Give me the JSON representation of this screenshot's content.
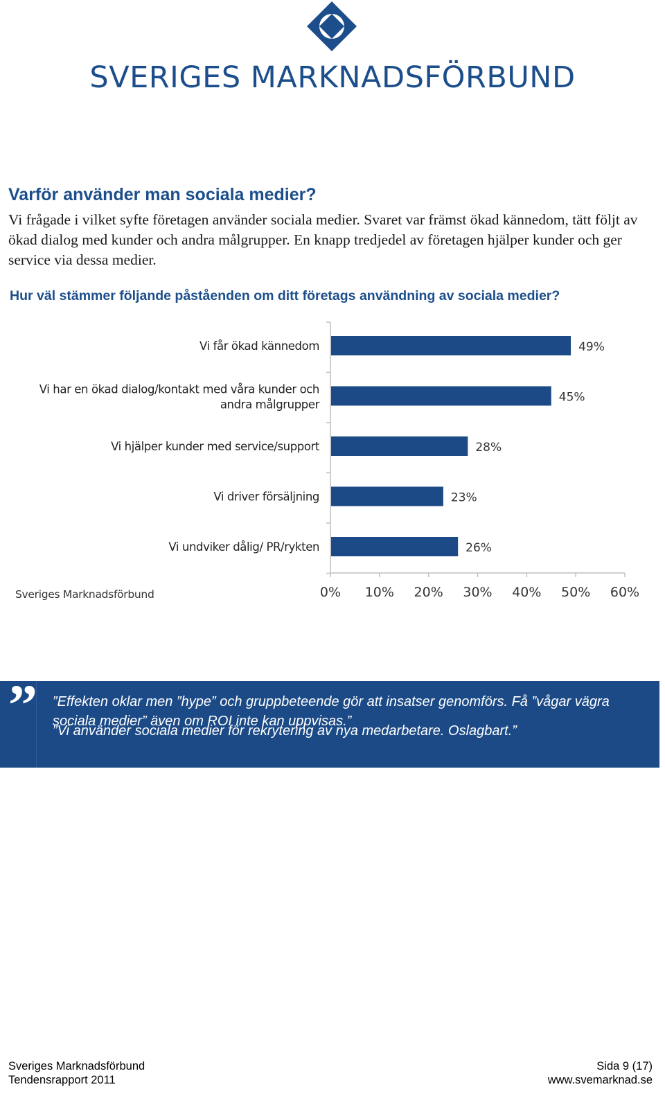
{
  "header": {
    "org_name": "SVERIGES MARKNADSFÖRBUND",
    "logo_icon": "diamond-circle-logo-icon",
    "brand_color": "#1c4e8c"
  },
  "section": {
    "heading": "Varför använder man sociala medier?",
    "intro": "Vi frågade i vilket syfte företagen använder sociala medier. Svaret var främst ökad kännedom, tätt följt av ökad dialog med kunder och andra målgrupper. En knapp tredjedel av företagen hjälper kunder och ger service via dessa medier.",
    "question": "Hur väl stämmer följande påståenden om ditt företags användning av sociala medier?"
  },
  "chart_data": {
    "type": "bar",
    "orientation": "horizontal",
    "categories": [
      "Vi får ökad kännedom",
      "Vi har en ökad dialog/kontakt med våra kunder och andra målgrupper",
      "Vi hjälper kunder med service/support",
      "Vi driver försäljning",
      "Vi undviker dålig/ PR/rykten"
    ],
    "category_lines": [
      [
        "Vi får ökad kännedom"
      ],
      [
        "Vi har en ökad dialog/kontakt med våra kunder och",
        "andra målgrupper"
      ],
      [
        "Vi hjälper kunder med service/support"
      ],
      [
        "Vi driver försäljning"
      ],
      [
        "Vi undviker dålig/ PR/rykten"
      ]
    ],
    "values": [
      49,
      45,
      28,
      23,
      26
    ],
    "value_labels": [
      "49%",
      "45%",
      "28%",
      "23%",
      "26%"
    ],
    "xlim": [
      0,
      60
    ],
    "x_ticks": [
      0,
      10,
      20,
      30,
      40,
      50,
      60
    ],
    "x_tick_labels": [
      "0%",
      "10%",
      "20%",
      "30%",
      "40%",
      "50%",
      "60%"
    ],
    "source": "Sveriges Marknadsförbund",
    "bar_color": "#1b4a86",
    "grid": false
  },
  "quote": {
    "icon": "quote-mark-icon",
    "lines": [
      "”Effekten oklar men ”hype” och gruppbeteende gör att insatser genomförs. Få ”vågar vägra sociala medier” även om ROI inte kan uppvisas.”",
      "”Vi använder sociala medier för rekrytering av nya medarbetare. Oslagbart.”"
    ],
    "background": "#1b4a86"
  },
  "footer": {
    "org": "Sveriges Marknadsförbund",
    "report": "Tendensrapport 2011",
    "page": "Sida 9 (17)",
    "website": "www.svemarknad.se"
  }
}
